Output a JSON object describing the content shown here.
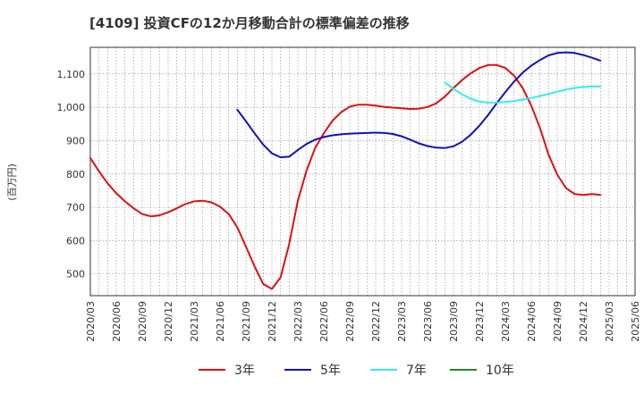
{
  "chart_data": {
    "type": "line",
    "title": "[4109]  投資CFの12か月移動合計の標準偏差の推移",
    "ylabel": "(百万円)",
    "xlabel": "",
    "ylim": [
      435,
      1180
    ],
    "y_ticks": [
      500,
      600,
      700,
      800,
      900,
      1000,
      1100
    ],
    "y_tick_labels": [
      "500",
      "600",
      "700",
      "800",
      "900",
      "1,000",
      "1,100"
    ],
    "x_range": [
      "2020-03",
      "2025-06"
    ],
    "x_tick_labels": [
      "2020/03",
      "2020/06",
      "2020/09",
      "2020/12",
      "2021/03",
      "2021/06",
      "2021/09",
      "2021/12",
      "2022/03",
      "2022/06",
      "2022/09",
      "2022/12",
      "2023/03",
      "2023/06",
      "2023/09",
      "2023/12",
      "2024/03",
      "2024/06",
      "2024/09",
      "2024/12",
      "2025/03",
      "2025/06"
    ],
    "grid": true,
    "legend_position": "bottom",
    "colors": {
      "3年": "#dd1111",
      "5年": "#1111bb",
      "7年": "#33eeee",
      "10年": "#228822"
    },
    "series": [
      {
        "name": "3年",
        "color": "#dd1111",
        "points": [
          [
            "2020-03",
            848
          ],
          [
            "2020-04",
            808
          ],
          [
            "2020-05",
            772
          ],
          [
            "2020-06",
            742
          ],
          [
            "2020-07",
            718
          ],
          [
            "2020-08",
            697
          ],
          [
            "2020-09",
            680
          ],
          [
            "2020-10",
            673
          ],
          [
            "2020-11",
            676
          ],
          [
            "2020-12",
            685
          ],
          [
            "2021-01",
            697
          ],
          [
            "2021-02",
            710
          ],
          [
            "2021-03",
            718
          ],
          [
            "2021-04",
            720
          ],
          [
            "2021-05",
            715
          ],
          [
            "2021-06",
            702
          ],
          [
            "2021-07",
            680
          ],
          [
            "2021-08",
            640
          ],
          [
            "2021-09",
            582
          ],
          [
            "2021-10",
            522
          ],
          [
            "2021-11",
            470
          ],
          [
            "2021-12",
            455
          ],
          [
            "2022-01",
            490
          ],
          [
            "2022-02",
            590
          ],
          [
            "2022-03",
            720
          ],
          [
            "2022-04",
            810
          ],
          [
            "2022-05",
            878
          ],
          [
            "2022-06",
            922
          ],
          [
            "2022-07",
            960
          ],
          [
            "2022-08",
            985
          ],
          [
            "2022-09",
            1002
          ],
          [
            "2022-10",
            1008
          ],
          [
            "2022-11",
            1008
          ],
          [
            "2022-12",
            1005
          ],
          [
            "2023-01",
            1001
          ],
          [
            "2023-02",
            999
          ],
          [
            "2023-03",
            997
          ],
          [
            "2023-04",
            995
          ],
          [
            "2023-05",
            996
          ],
          [
            "2023-06",
            1001
          ],
          [
            "2023-07",
            1012
          ],
          [
            "2023-08",
            1032
          ],
          [
            "2023-09",
            1058
          ],
          [
            "2023-10",
            1082
          ],
          [
            "2023-11",
            1102
          ],
          [
            "2023-12",
            1118
          ],
          [
            "2024-01",
            1127
          ],
          [
            "2024-02",
            1127
          ],
          [
            "2024-03",
            1118
          ],
          [
            "2024-04",
            1095
          ],
          [
            "2024-05",
            1058
          ],
          [
            "2024-06",
            1005
          ],
          [
            "2024-07",
            938
          ],
          [
            "2024-08",
            858
          ],
          [
            "2024-09",
            798
          ],
          [
            "2024-10",
            758
          ],
          [
            "2024-11",
            740
          ],
          [
            "2024-12",
            737
          ],
          [
            "2025-01",
            740
          ],
          [
            "2025-02",
            737
          ]
        ]
      },
      {
        "name": "5年",
        "color": "#1111bb",
        "points": [
          [
            "2021-08",
            993
          ],
          [
            "2021-09",
            958
          ],
          [
            "2021-10",
            922
          ],
          [
            "2021-11",
            888
          ],
          [
            "2021-12",
            862
          ],
          [
            "2022-01",
            850
          ],
          [
            "2022-02",
            852
          ],
          [
            "2022-03",
            872
          ],
          [
            "2022-04",
            890
          ],
          [
            "2022-05",
            903
          ],
          [
            "2022-06",
            911
          ],
          [
            "2022-07",
            916
          ],
          [
            "2022-08",
            919
          ],
          [
            "2022-09",
            921
          ],
          [
            "2022-10",
            922
          ],
          [
            "2022-11",
            923
          ],
          [
            "2022-12",
            924
          ],
          [
            "2023-01",
            923
          ],
          [
            "2023-02",
            920
          ],
          [
            "2023-03",
            913
          ],
          [
            "2023-04",
            903
          ],
          [
            "2023-05",
            892
          ],
          [
            "2023-06",
            884
          ],
          [
            "2023-07",
            879
          ],
          [
            "2023-08",
            878
          ],
          [
            "2023-09",
            883
          ],
          [
            "2023-10",
            897
          ],
          [
            "2023-11",
            918
          ],
          [
            "2023-12",
            945
          ],
          [
            "2024-01",
            977
          ],
          [
            "2024-02",
            1012
          ],
          [
            "2024-03",
            1046
          ],
          [
            "2024-04",
            1077
          ],
          [
            "2024-05",
            1104
          ],
          [
            "2024-06",
            1125
          ],
          [
            "2024-07",
            1142
          ],
          [
            "2024-08",
            1156
          ],
          [
            "2024-09",
            1163
          ],
          [
            "2024-10",
            1165
          ],
          [
            "2024-11",
            1163
          ],
          [
            "2024-12",
            1157
          ],
          [
            "2025-01",
            1149
          ],
          [
            "2025-02",
            1140
          ]
        ]
      },
      {
        "name": "7年",
        "color": "#33eeee",
        "points": [
          [
            "2023-08",
            1075
          ],
          [
            "2023-09",
            1055
          ],
          [
            "2023-10",
            1039
          ],
          [
            "2023-11",
            1026
          ],
          [
            "2023-12",
            1017
          ],
          [
            "2024-01",
            1014
          ],
          [
            "2024-02",
            1014
          ],
          [
            "2024-03",
            1016
          ],
          [
            "2024-04",
            1019
          ],
          [
            "2024-05",
            1023
          ],
          [
            "2024-06",
            1028
          ],
          [
            "2024-07",
            1034
          ],
          [
            "2024-08",
            1040
          ],
          [
            "2024-09",
            1047
          ],
          [
            "2024-10",
            1053
          ],
          [
            "2024-11",
            1058
          ],
          [
            "2024-12",
            1061
          ],
          [
            "2025-01",
            1063
          ],
          [
            "2025-02",
            1063
          ]
        ]
      },
      {
        "name": "10年",
        "color": "#228822",
        "points": []
      }
    ]
  }
}
